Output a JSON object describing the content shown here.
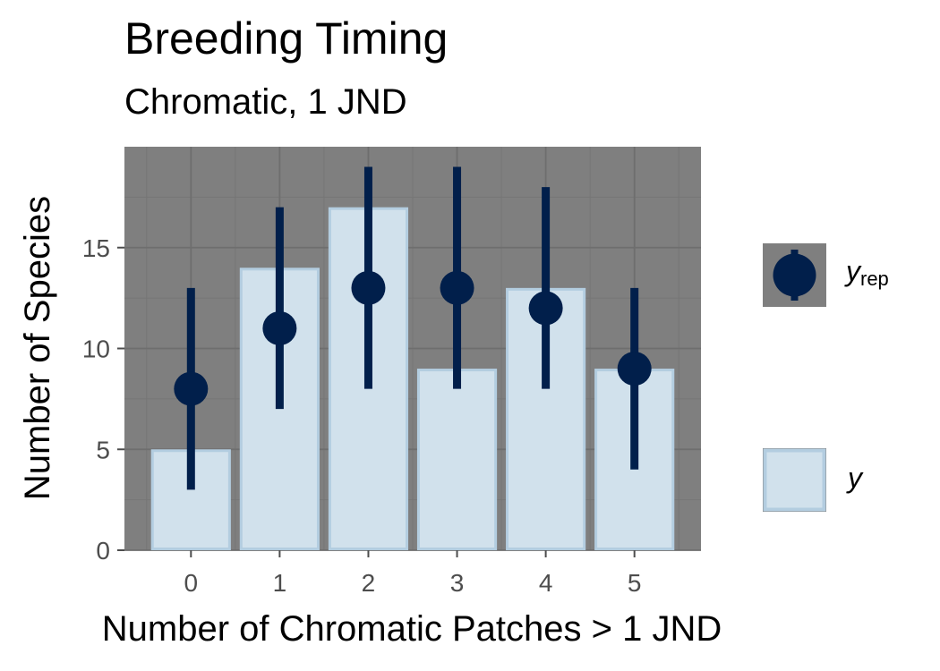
{
  "chart_data": {
    "type": "bar",
    "title": "Breeding Timing",
    "subtitle": "Chromatic, 1 JND",
    "xlabel": "Number of Chromatic Patches > 1 JND",
    "ylabel": "Number of Species",
    "categories": [
      "0",
      "1",
      "2",
      "3",
      "4",
      "5"
    ],
    "ylim": [
      0,
      20
    ],
    "yticks": [
      0,
      5,
      10,
      15
    ],
    "grid": true,
    "legend_position": "right",
    "series": [
      {
        "name": "y",
        "kind": "bar",
        "values": [
          5,
          14,
          17,
          9,
          13,
          9
        ]
      },
      {
        "name": "y_rep",
        "kind": "pointrange",
        "median": [
          8,
          11,
          13,
          13,
          12,
          9
        ],
        "lower": [
          3,
          7,
          8,
          8,
          8,
          4
        ],
        "upper": [
          13,
          17,
          19,
          19,
          18,
          13
        ]
      }
    ],
    "legend": [
      {
        "symbol": "y",
        "subscript": "rep",
        "kind": "pointrange"
      },
      {
        "symbol": "y",
        "subscript": "",
        "kind": "bar"
      }
    ],
    "colors": {
      "panel": "#7f7f7f",
      "grid_major": "#6e6e6e",
      "grid_minor": "#767676",
      "bar_fill": "#d1e1ec",
      "bar_border": "#b3cde0",
      "point": "#011f4b",
      "axis_text": "#4d4d4d"
    }
  }
}
